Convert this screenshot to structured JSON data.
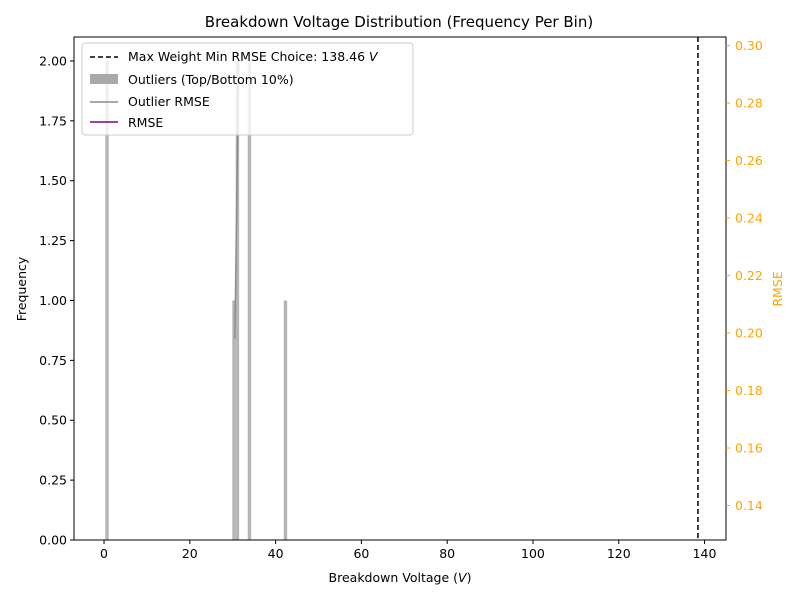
{
  "chart_data": {
    "type": "bar",
    "title": "Breakdown Voltage Distribution (Frequency Per Bin)",
    "xlabel": "Breakdown Voltage (",
    "xlabel_unit": "V",
    "xlabel_close": ")",
    "ylabel": "Frequency",
    "y2label": "RMSE",
    "xlim": [
      -7,
      145
    ],
    "ylim": [
      0,
      2.1
    ],
    "y2lim": [
      0.128,
      0.303
    ],
    "x_ticks": [
      0,
      20,
      40,
      60,
      80,
      100,
      120,
      140
    ],
    "x_tick_labels": [
      "0",
      "20",
      "40",
      "60",
      "80",
      "100",
      "120",
      "140"
    ],
    "y_ticks": [
      0,
      0.25,
      0.5,
      0.75,
      1.0,
      1.25,
      1.5,
      1.75,
      2.0
    ],
    "y_tick_labels": [
      "0.00",
      "0.25",
      "0.50",
      "0.75",
      "1.00",
      "1.25",
      "1.50",
      "1.75",
      "2.00"
    ],
    "y2_ticks": [
      0.14,
      0.16,
      0.18,
      0.2,
      0.22,
      0.24,
      0.26,
      0.28,
      0.3
    ],
    "y2_tick_labels": [
      "0.14",
      "0.16",
      "0.18",
      "0.20",
      "0.22",
      "0.24",
      "0.26",
      "0.28",
      "0.30"
    ],
    "bins": [
      {
        "x": 0.7,
        "width": 0.8,
        "value": 2
      },
      {
        "x": 30.3,
        "width": 0.8,
        "value": 1
      },
      {
        "x": 31.1,
        "width": 0.8,
        "value": 2
      },
      {
        "x": 33.9,
        "width": 0.8,
        "value": 2
      },
      {
        "x": 42.3,
        "width": 0.8,
        "value": 1
      }
    ],
    "outlier_rmse": {
      "x": [
        30.5,
        31.4
      ],
      "y": [
        0.198,
        0.295
      ]
    },
    "vline": {
      "x": 138.46
    },
    "legend": {
      "position": "upper-left",
      "entries": [
        {
          "label": "Max Weight Min RMSE Choice: 138.46 ",
          "label_unit": "V",
          "style": "dashed",
          "color": "#000000"
        },
        {
          "label": "Outliers (Top/Bottom 10%)",
          "style": "patch",
          "color": "#a9a9a9"
        },
        {
          "label": "Outlier RMSE",
          "style": "line",
          "color": "#8c8c8c"
        },
        {
          "label": "RMSE",
          "style": "line",
          "color": "#800080"
        }
      ]
    },
    "colors": {
      "bar": "#b5b5b5",
      "outlier_line": "#8c8c8c",
      "rmse_line": "#800080",
      "right_axis": "#ffa500",
      "vline": "#000000"
    }
  }
}
